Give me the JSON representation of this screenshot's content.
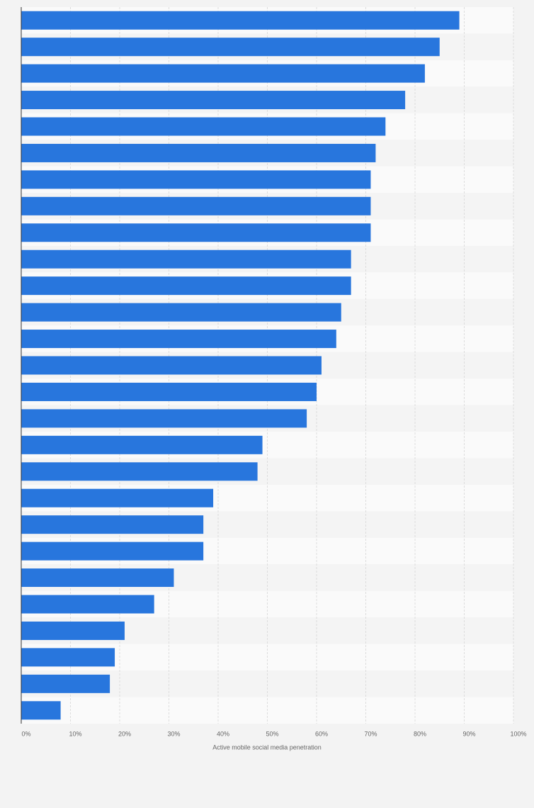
{
  "chart_data": {
    "type": "bar",
    "orientation": "horizontal",
    "x_label": "Active mobile social media penetration",
    "categories": [
      null,
      null,
      null,
      null,
      null,
      null,
      null,
      null,
      null,
      null,
      null,
      null,
      null,
      null,
      null,
      null,
      null,
      null,
      null,
      null,
      null,
      null,
      null,
      null,
      null,
      null,
      null
    ],
    "values": [
      89,
      85,
      82,
      78,
      74,
      72,
      71,
      71,
      71,
      67,
      67,
      65,
      64,
      61,
      60,
      58,
      49,
      48,
      39,
      37,
      37,
      31,
      27,
      21,
      19,
      18,
      8
    ],
    "color": "#2876dd",
    "xlim": [
      0,
      100
    ],
    "xticks": [
      {
        "value": 0,
        "label": "0%"
      },
      {
        "value": 10,
        "label": "10%"
      },
      {
        "value": 20,
        "label": "20%"
      },
      {
        "value": 30,
        "label": "30%"
      },
      {
        "value": 40,
        "label": "40%"
      },
      {
        "value": 50,
        "label": "50%"
      },
      {
        "value": 60,
        "label": "60%"
      },
      {
        "value": 70,
        "label": "70%"
      },
      {
        "value": 80,
        "label": "80%"
      },
      {
        "value": 90,
        "label": "90%"
      },
      {
        "value": 100,
        "label": "100%"
      }
    ],
    "grid": true
  }
}
